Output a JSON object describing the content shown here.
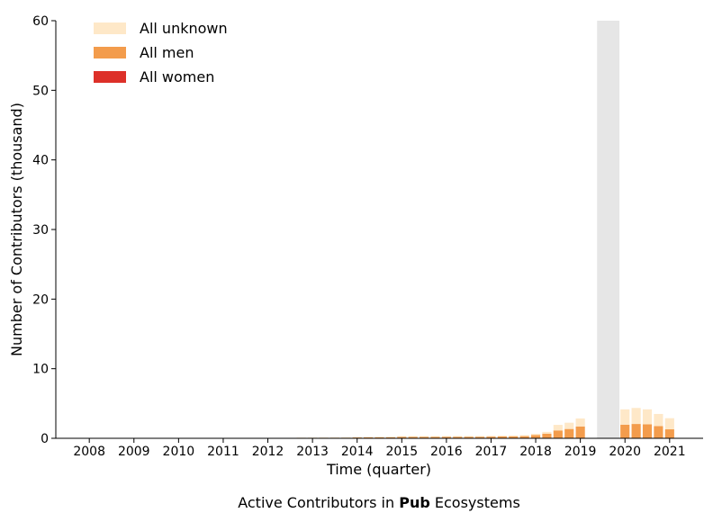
{
  "chart_data": {
    "type": "bar",
    "stacked": true,
    "caption_prefix": "Active Contributors in ",
    "caption_bold": "Pub",
    "caption_suffix": " Ecosystems",
    "xlabel": "Time (quarter)",
    "ylabel": "Number of Contributors (thousand)",
    "ylim": [
      0,
      60
    ],
    "yticks": [
      0,
      10,
      20,
      30,
      40,
      50,
      60
    ],
    "xticks": [
      "2008",
      "2009",
      "2010",
      "2011",
      "2012",
      "2013",
      "2014",
      "2015",
      "2016",
      "2017",
      "2018",
      "2019",
      "2020",
      "2021"
    ],
    "legend_position": "top-left",
    "grid": false,
    "shaded_region": {
      "from": 2019.375,
      "to": 2019.875,
      "color": "#e6e6e6"
    },
    "colors": {
      "women": "#dd3029",
      "men": "#f39c4c",
      "unknown": "#fee8c8"
    },
    "legend": [
      {
        "key": "unknown",
        "label": "All unknown"
      },
      {
        "key": "men",
        "label": "All men"
      },
      {
        "key": "women",
        "label": "All women"
      }
    ],
    "bars": [
      {
        "t": 2012.75,
        "women": 0.0,
        "men": 0.05,
        "unknown": 0.05
      },
      {
        "t": 2013.0,
        "women": 0.0,
        "men": 0.06,
        "unknown": 0.05
      },
      {
        "t": 2013.25,
        "women": 0.0,
        "men": 0.07,
        "unknown": 0.05
      },
      {
        "t": 2013.5,
        "women": 0.0,
        "men": 0.08,
        "unknown": 0.06
      },
      {
        "t": 2013.75,
        "women": 0.0,
        "men": 0.09,
        "unknown": 0.06
      },
      {
        "t": 2014.0,
        "women": 0.0,
        "men": 0.12,
        "unknown": 0.07
      },
      {
        "t": 2014.25,
        "women": 0.0,
        "men": 0.13,
        "unknown": 0.07
      },
      {
        "t": 2014.5,
        "women": 0.0,
        "men": 0.14,
        "unknown": 0.08
      },
      {
        "t": 2014.75,
        "women": 0.0,
        "men": 0.15,
        "unknown": 0.08
      },
      {
        "t": 2015.0,
        "women": 0.01,
        "men": 0.2,
        "unknown": 0.1
      },
      {
        "t": 2015.25,
        "women": 0.01,
        "men": 0.2,
        "unknown": 0.1
      },
      {
        "t": 2015.5,
        "women": 0.01,
        "men": 0.2,
        "unknown": 0.1
      },
      {
        "t": 2015.75,
        "women": 0.01,
        "men": 0.2,
        "unknown": 0.1
      },
      {
        "t": 2016.0,
        "women": 0.01,
        "men": 0.21,
        "unknown": 0.1
      },
      {
        "t": 2016.25,
        "women": 0.01,
        "men": 0.21,
        "unknown": 0.1
      },
      {
        "t": 2016.5,
        "women": 0.01,
        "men": 0.21,
        "unknown": 0.1
      },
      {
        "t": 2016.75,
        "women": 0.01,
        "men": 0.21,
        "unknown": 0.1
      },
      {
        "t": 2017.0,
        "women": 0.01,
        "men": 0.23,
        "unknown": 0.11
      },
      {
        "t": 2017.25,
        "women": 0.01,
        "men": 0.25,
        "unknown": 0.12
      },
      {
        "t": 2017.5,
        "women": 0.01,
        "men": 0.27,
        "unknown": 0.13
      },
      {
        "t": 2017.75,
        "women": 0.01,
        "men": 0.3,
        "unknown": 0.14
      },
      {
        "t": 2018.0,
        "women": 0.02,
        "men": 0.45,
        "unknown": 0.18
      },
      {
        "t": 2018.25,
        "women": 0.02,
        "men": 0.65,
        "unknown": 0.25
      },
      {
        "t": 2018.5,
        "women": 0.03,
        "men": 1.1,
        "unknown": 0.8
      },
      {
        "t": 2018.75,
        "women": 0.04,
        "men": 1.3,
        "unknown": 0.9
      },
      {
        "t": 2019.0,
        "women": 0.05,
        "men": 1.65,
        "unknown": 1.15
      },
      {
        "t": 2020.0,
        "women": 0.06,
        "men": 1.9,
        "unknown": 2.2
      },
      {
        "t": 2020.25,
        "women": 0.06,
        "men": 2.0,
        "unknown": 2.3
      },
      {
        "t": 2020.5,
        "women": 0.06,
        "men": 1.95,
        "unknown": 2.15
      },
      {
        "t": 2020.75,
        "women": 0.05,
        "men": 1.7,
        "unknown": 1.75
      },
      {
        "t": 2021.0,
        "women": 0.04,
        "men": 1.25,
        "unknown": 1.6
      }
    ]
  }
}
